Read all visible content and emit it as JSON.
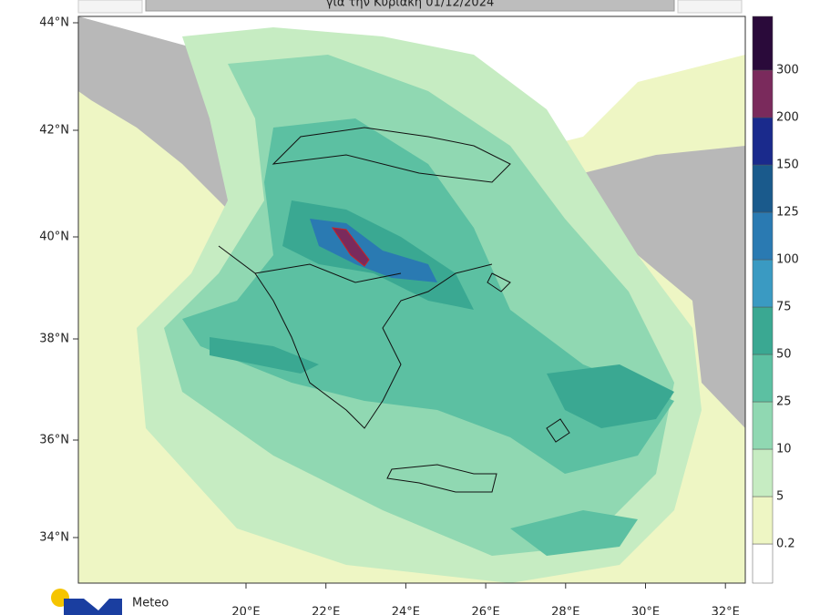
{
  "header": {
    "title": "για την Κυριακή 01/12/2024"
  },
  "map": {
    "lat_labels": [
      "44°N",
      "42°N",
      "40°N",
      "38°N",
      "36°N",
      "34°N"
    ],
    "lon_labels": [
      "20°E",
      "22°E",
      "24°E",
      "26°E",
      "28°E",
      "30°E",
      "32°E"
    ]
  },
  "legend": {
    "levels": [
      0.2,
      5,
      10,
      25,
      50,
      75,
      100,
      125,
      150,
      200,
      300
    ],
    "colors": [
      "#ffffff",
      "#eef6c4",
      "#c6ecc2",
      "#90d8b2",
      "#5cc0a2",
      "#3aa892",
      "#3a9ac2",
      "#2a7ab2",
      "#1a5a8c",
      "#1a2a8c",
      "#7a2a5c",
      "#2a0a3a"
    ]
  },
  "logo": {
    "text": "Meteo"
  }
}
